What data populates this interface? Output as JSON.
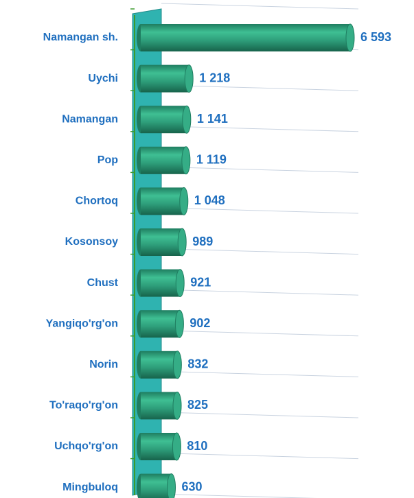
{
  "chart_data": {
    "type": "bar",
    "orientation": "horizontal",
    "categories": [
      "Namangan sh.",
      "Uychi",
      "Namangan",
      "Pop",
      "Chortoq",
      "Kosonsoy",
      "Chust",
      "Yangiqo'rg'on",
      "Norin",
      "To'raqo'rg'on",
      "Uchqo'rg'on",
      "Mingbuloq"
    ],
    "values": [
      6593,
      1218,
      1141,
      1119,
      1048,
      989,
      921,
      902,
      832,
      825,
      810,
      630
    ],
    "value_labels": [
      "6 593",
      "1 218",
      "1 141",
      "1 119",
      "1 048",
      "989",
      "921",
      "902",
      "832",
      "825",
      "810",
      "630"
    ],
    "color": "#2e9e7a"
  }
}
